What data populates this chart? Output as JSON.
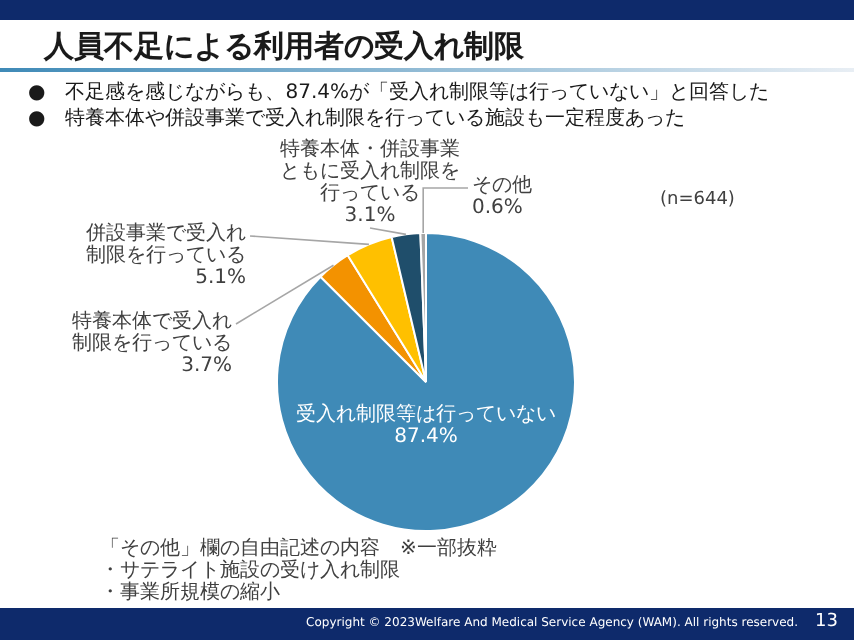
{
  "chart_data": {
    "type": "pie",
    "title": "人員不足による利用者の受入れ制限",
    "categories": [
      "受入れ制限等は行っていない",
      "特養本体で受入れ制限を行っている",
      "併設事業で受入れ制限を行っている",
      "特養本体・併設事業ともに受入れ制限を行っている",
      "その他"
    ],
    "values": [
      87.4,
      3.7,
      5.1,
      3.1,
      0.6
    ],
    "colors": [
      "#3f8ab7",
      "#f39200",
      "#ffc000",
      "#1f4e6b",
      "#a6a6a6"
    ],
    "value_labels": [
      "87.4%",
      "3.7%",
      "5.1%",
      "3.1%",
      "0.6%"
    ],
    "legend": false,
    "annotations": [
      "●　不足感を感じながらも、87.4%が「受入れ制限等は行っていない」と回答した",
      "●　特養本体や併設事業で受入れ制限を行っている施設も一定程度あった",
      "(n=644)",
      "「その他」欄の自由記述の内容　※一部抜粋",
      "・サテライト施設の受け入れ制限",
      "・事業所規模の縮小",
      "Copyright © 2023Welfare And Medical Service Agency (WAM). All rights reserved.",
      "13"
    ]
  }
}
